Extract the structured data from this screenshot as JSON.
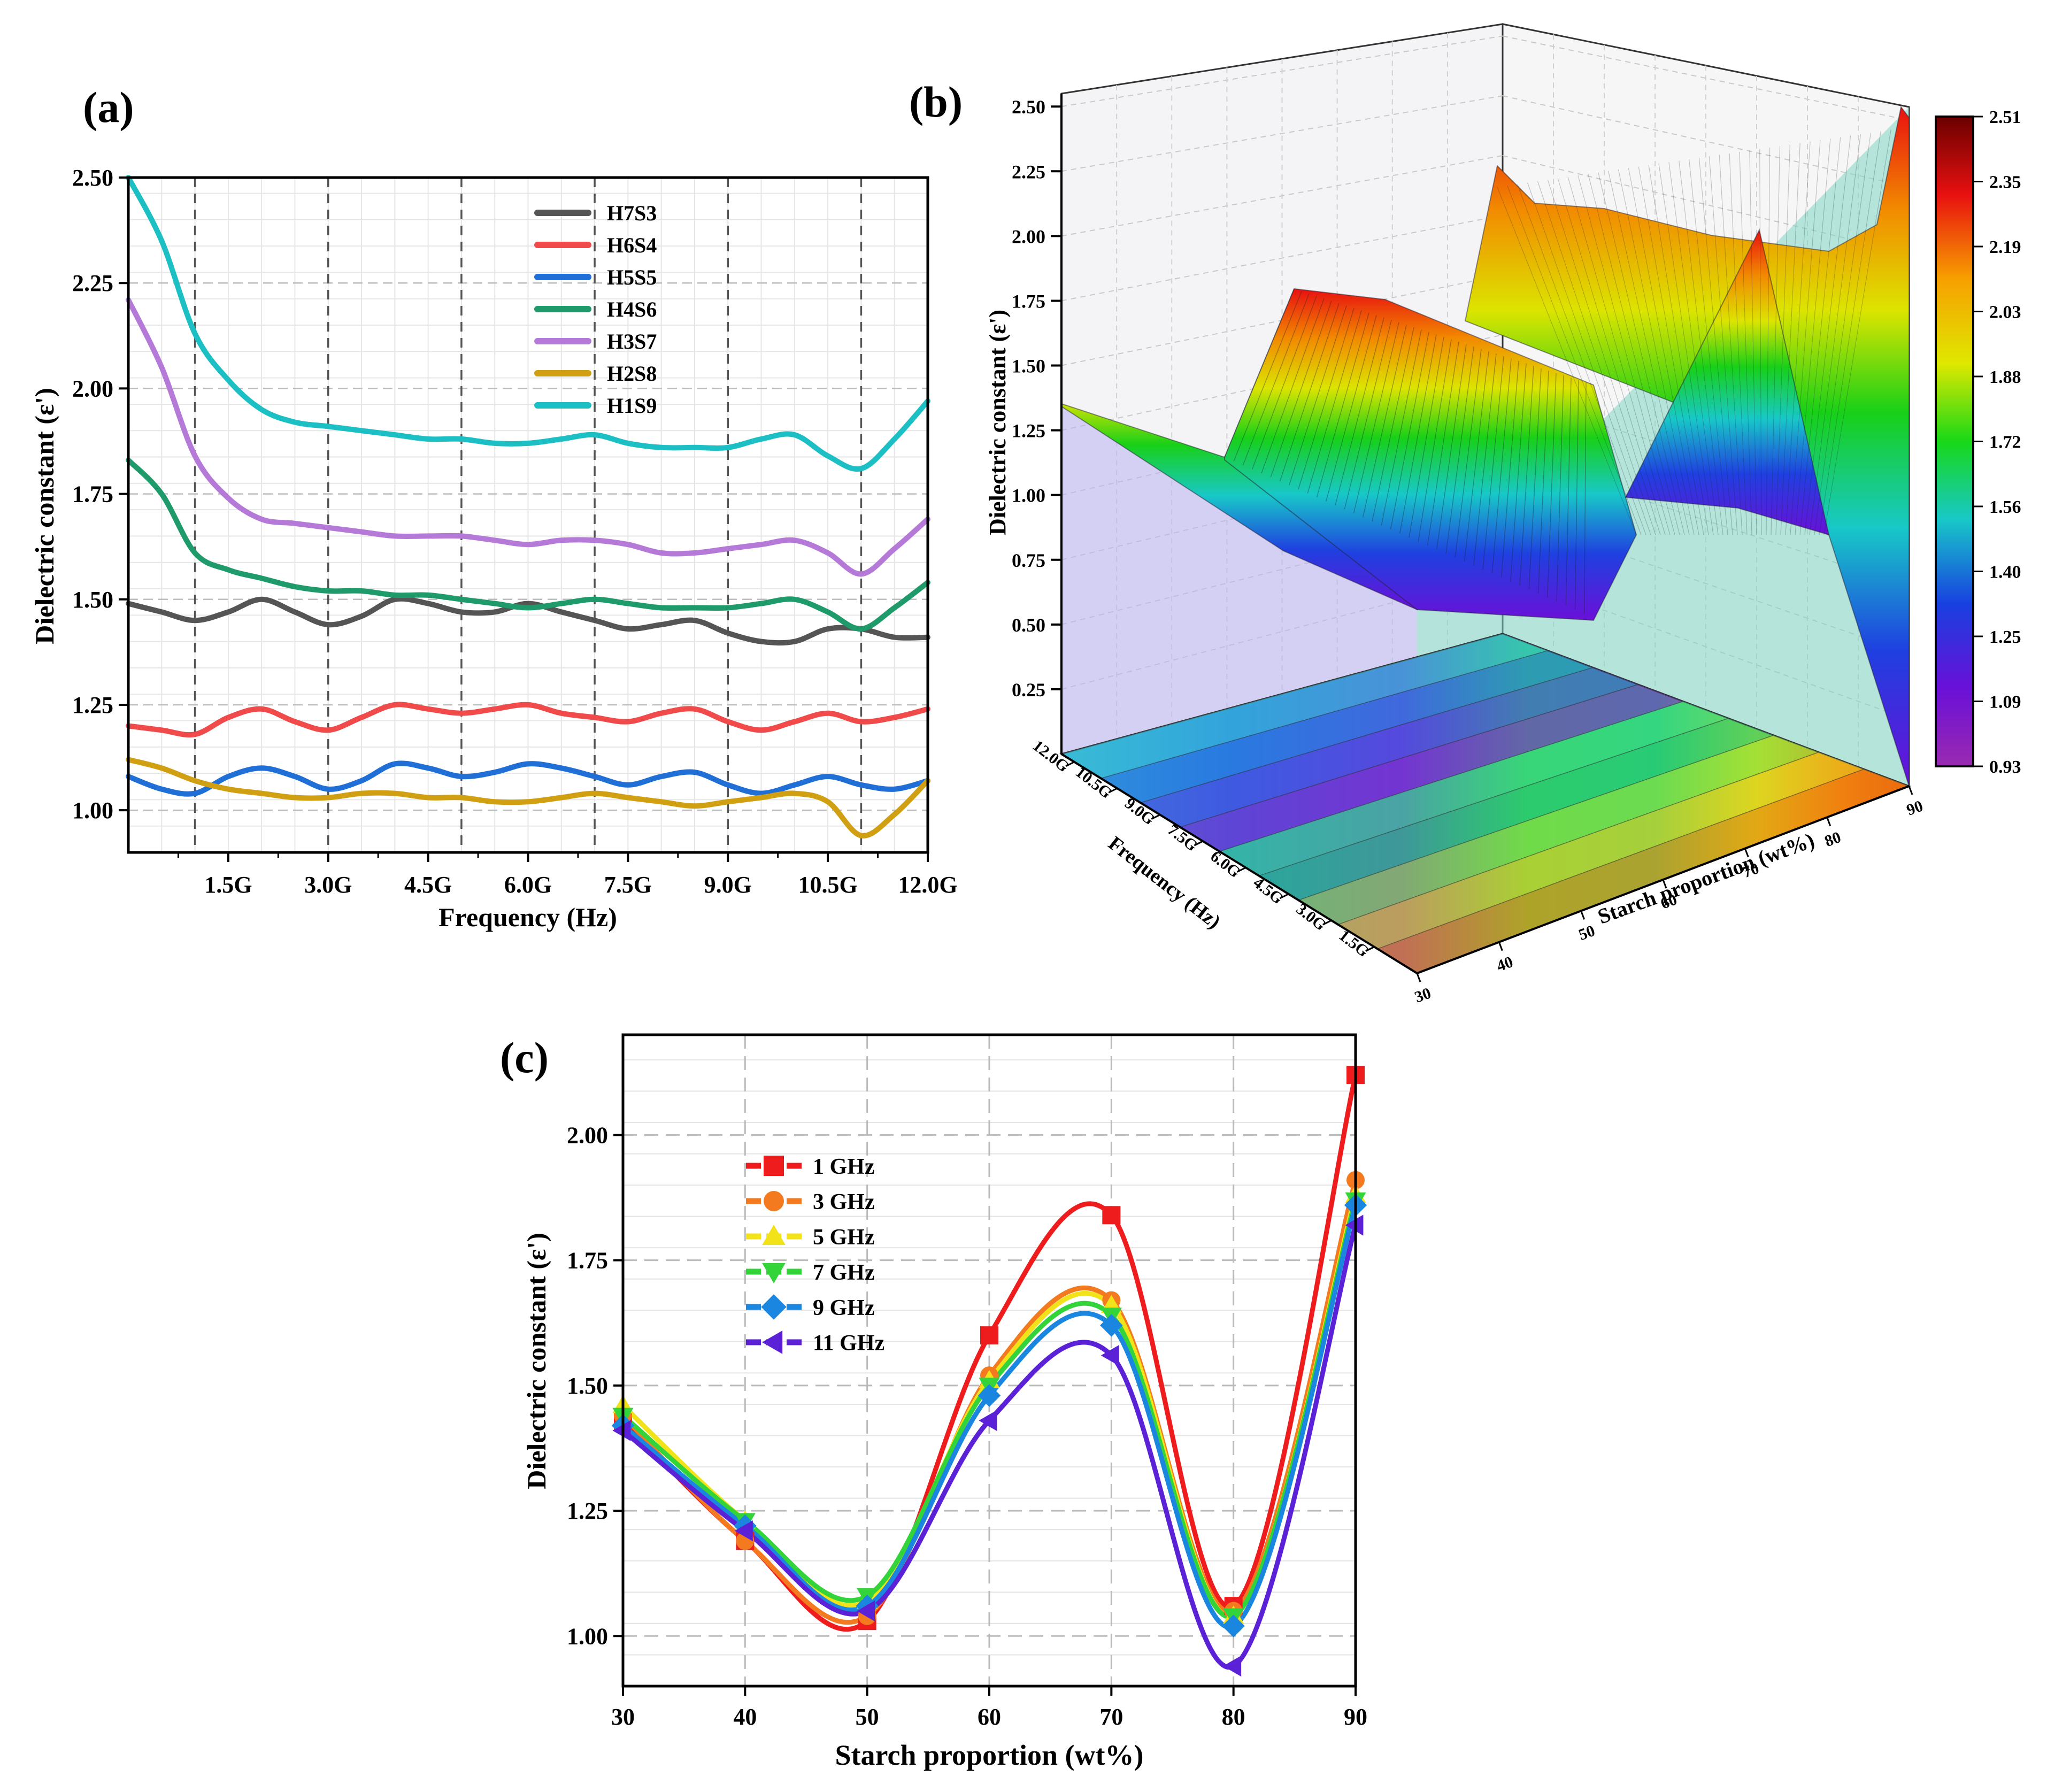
{
  "panels": {
    "a": {
      "label": "(a)"
    },
    "b": {
      "label": "(b)"
    },
    "c": {
      "label": "(c)"
    }
  },
  "chart_data": [
    {
      "id": "a",
      "type": "line",
      "title": "",
      "xlabel": "Frequency (Hz)",
      "ylabel": "Dielectric constant (ε')",
      "xlim": [
        0,
        12
      ],
      "ylim": [
        0.9,
        2.5
      ],
      "x_ticks": [
        1.5,
        3,
        4.5,
        6,
        7.5,
        9,
        10.5,
        12
      ],
      "x_tick_labels": [
        "1.5G",
        "3.0G",
        "4.5G",
        "6.0G",
        "7.5G",
        "9.0G",
        "10.5G",
        "12.0G"
      ],
      "y_ticks": [
        1.0,
        1.25,
        1.5,
        1.75,
        2.0,
        2.25,
        2.5
      ],
      "y_tick_labels": [
        "1.00",
        "1.25",
        "1.50",
        "1.75",
        "2.00",
        "2.25",
        "2.50"
      ],
      "dashed_vlines": [
        1,
        3,
        5,
        7,
        9,
        11
      ],
      "legend_position": "top-center",
      "x": [
        0,
        0.5,
        1.0,
        1.5,
        2.0,
        2.5,
        3.0,
        3.5,
        4.0,
        4.5,
        5.0,
        5.5,
        6.0,
        6.5,
        7.0,
        7.5,
        8.0,
        8.5,
        9.0,
        9.5,
        10.0,
        10.5,
        11.0,
        11.5,
        12.0
      ],
      "series": [
        {
          "name": "H7S3",
          "color": "#555555",
          "values": [
            1.49,
            1.47,
            1.45,
            1.47,
            1.5,
            1.47,
            1.44,
            1.46,
            1.5,
            1.49,
            1.47,
            1.47,
            1.49,
            1.47,
            1.45,
            1.43,
            1.44,
            1.45,
            1.42,
            1.4,
            1.4,
            1.43,
            1.43,
            1.41,
            1.41
          ]
        },
        {
          "name": "H6S4",
          "color": "#f04a4a",
          "values": [
            1.2,
            1.19,
            1.18,
            1.22,
            1.24,
            1.21,
            1.19,
            1.22,
            1.25,
            1.24,
            1.23,
            1.24,
            1.25,
            1.23,
            1.22,
            1.21,
            1.23,
            1.24,
            1.21,
            1.19,
            1.21,
            1.23,
            1.21,
            1.22,
            1.24
          ]
        },
        {
          "name": "H5S5",
          "color": "#1f6fd6",
          "values": [
            1.08,
            1.05,
            1.04,
            1.08,
            1.1,
            1.08,
            1.05,
            1.07,
            1.11,
            1.1,
            1.08,
            1.09,
            1.11,
            1.1,
            1.08,
            1.06,
            1.08,
            1.09,
            1.06,
            1.04,
            1.06,
            1.08,
            1.06,
            1.05,
            1.07
          ]
        },
        {
          "name": "H4S6",
          "color": "#1e9a6b",
          "values": [
            1.83,
            1.75,
            1.61,
            1.57,
            1.55,
            1.53,
            1.52,
            1.52,
            1.51,
            1.51,
            1.5,
            1.49,
            1.48,
            1.49,
            1.5,
            1.49,
            1.48,
            1.48,
            1.48,
            1.49,
            1.5,
            1.47,
            1.43,
            1.48,
            1.54
          ]
        },
        {
          "name": "H3S7",
          "color": "#b57ad8",
          "values": [
            2.21,
            2.05,
            1.84,
            1.74,
            1.69,
            1.68,
            1.67,
            1.66,
            1.65,
            1.65,
            1.65,
            1.64,
            1.63,
            1.64,
            1.64,
            1.63,
            1.61,
            1.61,
            1.62,
            1.63,
            1.64,
            1.61,
            1.56,
            1.62,
            1.69
          ]
        },
        {
          "name": "H2S8",
          "color": "#d1a012",
          "values": [
            1.12,
            1.1,
            1.07,
            1.05,
            1.04,
            1.03,
            1.03,
            1.04,
            1.04,
            1.03,
            1.03,
            1.02,
            1.02,
            1.03,
            1.04,
            1.03,
            1.02,
            1.01,
            1.02,
            1.03,
            1.04,
            1.02,
            0.94,
            0.99,
            1.07
          ]
        },
        {
          "name": "H1S9",
          "color": "#1bbfc4",
          "values": [
            2.5,
            2.35,
            2.13,
            2.02,
            1.95,
            1.92,
            1.91,
            1.9,
            1.89,
            1.88,
            1.88,
            1.87,
            1.87,
            1.88,
            1.89,
            1.87,
            1.86,
            1.86,
            1.86,
            1.88,
            1.89,
            1.84,
            1.81,
            1.88,
            1.97
          ]
        }
      ]
    },
    {
      "id": "b",
      "type": "surface",
      "title": "",
      "xlabel": "Starch proportion (wt%)",
      "ylabel": "Frequency (Hz)",
      "zlabel": "Dielectric constant (ε')",
      "x_ticks": [
        30,
        40,
        50,
        60,
        70,
        80,
        90
      ],
      "y_tick_labels": [
        "1.5G",
        "3.0G",
        "4.5G",
        "6.0G",
        "7.5G",
        "9.0G",
        "10.5G",
        "12.0G"
      ],
      "z_ticks": [
        0.25,
        0.5,
        0.75,
        1.0,
        1.25,
        1.5,
        1.75,
        2.0,
        2.25,
        2.5
      ],
      "z_tick_labels": [
        "0.25",
        "0.50",
        "0.75",
        "1.00",
        "1.25",
        "1.50",
        "1.75",
        "2.00",
        "2.25",
        "2.50"
      ],
      "colorbar_labels": [
        "2.51",
        "2.35",
        "2.19",
        "2.03",
        "1.88",
        "1.72",
        "1.56",
        "1.40",
        "1.25",
        "1.09",
        "0.93"
      ],
      "colorbar_range": [
        0.93,
        2.51
      ],
      "starch": [
        30,
        40,
        50,
        60,
        70,
        80,
        90
      ],
      "surface_profile_mid_frequency": [
        1.44,
        1.21,
        1.04,
        1.5,
        1.66,
        1.03,
        1.87
      ]
    },
    {
      "id": "c",
      "type": "line",
      "title": "",
      "xlabel": "Starch proportion (wt%)",
      "ylabel": "Dielectric constant (ε')",
      "xlim": [
        30,
        90
      ],
      "ylim": [
        0.9,
        2.2
      ],
      "x_ticks": [
        30,
        40,
        50,
        60,
        70,
        80,
        90
      ],
      "x_tick_labels": [
        "30",
        "40",
        "50",
        "60",
        "70",
        "80",
        "90"
      ],
      "y_ticks": [
        1.0,
        1.25,
        1.5,
        1.75,
        2.0
      ],
      "y_tick_labels": [
        "1.00",
        "1.25",
        "1.50",
        "1.75",
        "2.00"
      ],
      "legend_position": "top-left",
      "x": [
        30,
        40,
        50,
        60,
        70,
        80,
        90
      ],
      "series": [
        {
          "name": "1 GHz",
          "color": "#ee1c1c",
          "marker": "square",
          "values": [
            1.43,
            1.19,
            1.03,
            1.6,
            1.84,
            1.06,
            2.12
          ]
        },
        {
          "name": "3 GHz",
          "color": "#f47a20",
          "marker": "circle",
          "values": [
            1.44,
            1.19,
            1.04,
            1.52,
            1.67,
            1.05,
            1.91
          ]
        },
        {
          "name": "5 GHz",
          "color": "#f2e21a",
          "marker": "triangle-up",
          "values": [
            1.46,
            1.23,
            1.07,
            1.51,
            1.66,
            1.04,
            1.88
          ]
        },
        {
          "name": "7 GHz",
          "color": "#33d43a",
          "marker": "triangle-down",
          "values": [
            1.44,
            1.23,
            1.08,
            1.5,
            1.64,
            1.04,
            1.87
          ]
        },
        {
          "name": "9 GHz",
          "color": "#1b86e0",
          "marker": "diamond",
          "values": [
            1.42,
            1.22,
            1.06,
            1.48,
            1.62,
            1.02,
            1.86
          ]
        },
        {
          "name": "11 GHz",
          "color": "#5b21d6",
          "marker": "triangle-left",
          "values": [
            1.41,
            1.21,
            1.05,
            1.43,
            1.56,
            0.94,
            1.82
          ]
        }
      ]
    }
  ]
}
